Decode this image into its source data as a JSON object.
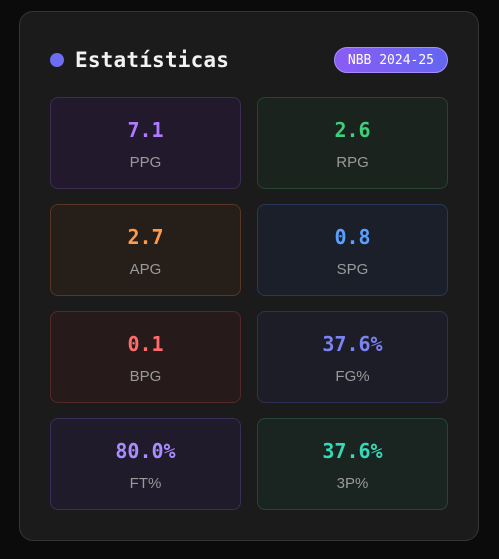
{
  "header": {
    "title": "Estatísticas",
    "badge": "NBB 2024-25",
    "dot_color": "#6d6cf2",
    "badge_gradient": [
      "#8b5cf6",
      "#6366f1"
    ]
  },
  "stats": [
    {
      "value": "7.1",
      "label": "PPG",
      "color": "#b07cff",
      "bg": "#221a2c",
      "border": "#3d2c55"
    },
    {
      "value": "2.6",
      "label": "RPG",
      "color": "#3ecf7a",
      "bg": "#1a231d",
      "border": "#24452f"
    },
    {
      "value": "2.7",
      "label": "APG",
      "color": "#ff9a4a",
      "bg": "#261e19",
      "border": "#5a3522"
    },
    {
      "value": "0.8",
      "label": "SPG",
      "color": "#5aa0ff",
      "bg": "#1b1f29",
      "border": "#27385a"
    },
    {
      "value": "0.1",
      "label": "BPG",
      "color": "#ff6b6b",
      "bg": "#271a1a",
      "border": "#552828"
    },
    {
      "value": "37.6%",
      "label": "FG%",
      "color": "#7c83f5",
      "bg": "#1d1d28",
      "border": "#303056"
    },
    {
      "value": "80.0%",
      "label": "FT%",
      "color": "#a98cff",
      "bg": "#201b2a",
      "border": "#3a2d58"
    },
    {
      "value": "37.6%",
      "label": "3P%",
      "color": "#36d9b6",
      "bg": "#1a2421",
      "border": "#24463d"
    }
  ]
}
